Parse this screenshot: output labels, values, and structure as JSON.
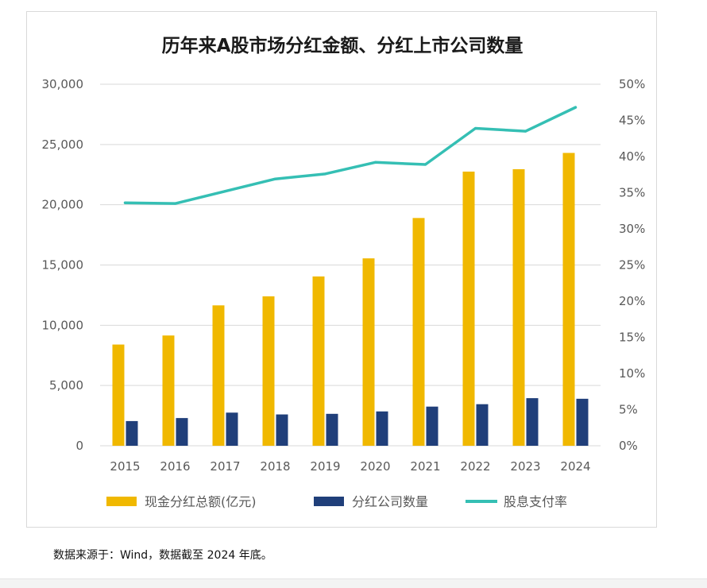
{
  "chart_data": {
    "type": "bar",
    "title": "历年来A股市场分红金额、分红上市公司数量",
    "categories": [
      "2015",
      "2016",
      "2017",
      "2018",
      "2019",
      "2020",
      "2021",
      "2022",
      "2023",
      "2024"
    ],
    "series": [
      {
        "name": "现金分红总额(亿元)",
        "type": "bar",
        "axis": "left",
        "color": "#f0b800",
        "values": [
          8400,
          9150,
          11650,
          12400,
          14050,
          15550,
          18900,
          22750,
          22950,
          24300
        ]
      },
      {
        "name": "分红公司数量",
        "type": "bar",
        "axis": "left",
        "color": "#203f7a",
        "values": [
          2050,
          2300,
          2750,
          2600,
          2650,
          2850,
          3250,
          3450,
          3950,
          3900
        ]
      },
      {
        "name": "股息支付率",
        "type": "line",
        "axis": "right",
        "color": "#35bfb4",
        "values": [
          33.6,
          33.5,
          35.2,
          36.9,
          37.6,
          39.2,
          38.9,
          43.9,
          43.5,
          46.8
        ]
      }
    ],
    "y_left": {
      "range": [
        0,
        30000
      ],
      "ticks": [
        "0",
        "5,000",
        "10,000",
        "15,000",
        "20,000",
        "25,000",
        "30,000"
      ]
    },
    "y_right": {
      "range": [
        0,
        50
      ],
      "ticks": [
        "0%",
        "5%",
        "10%",
        "15%",
        "20%",
        "25%",
        "30%",
        "35%",
        "40%",
        "45%",
        "50%"
      ]
    },
    "grid": true,
    "legend_position": "bottom"
  },
  "footer": {
    "source_note": "数据来源于：Wind，数据截至 2024 年底。"
  }
}
